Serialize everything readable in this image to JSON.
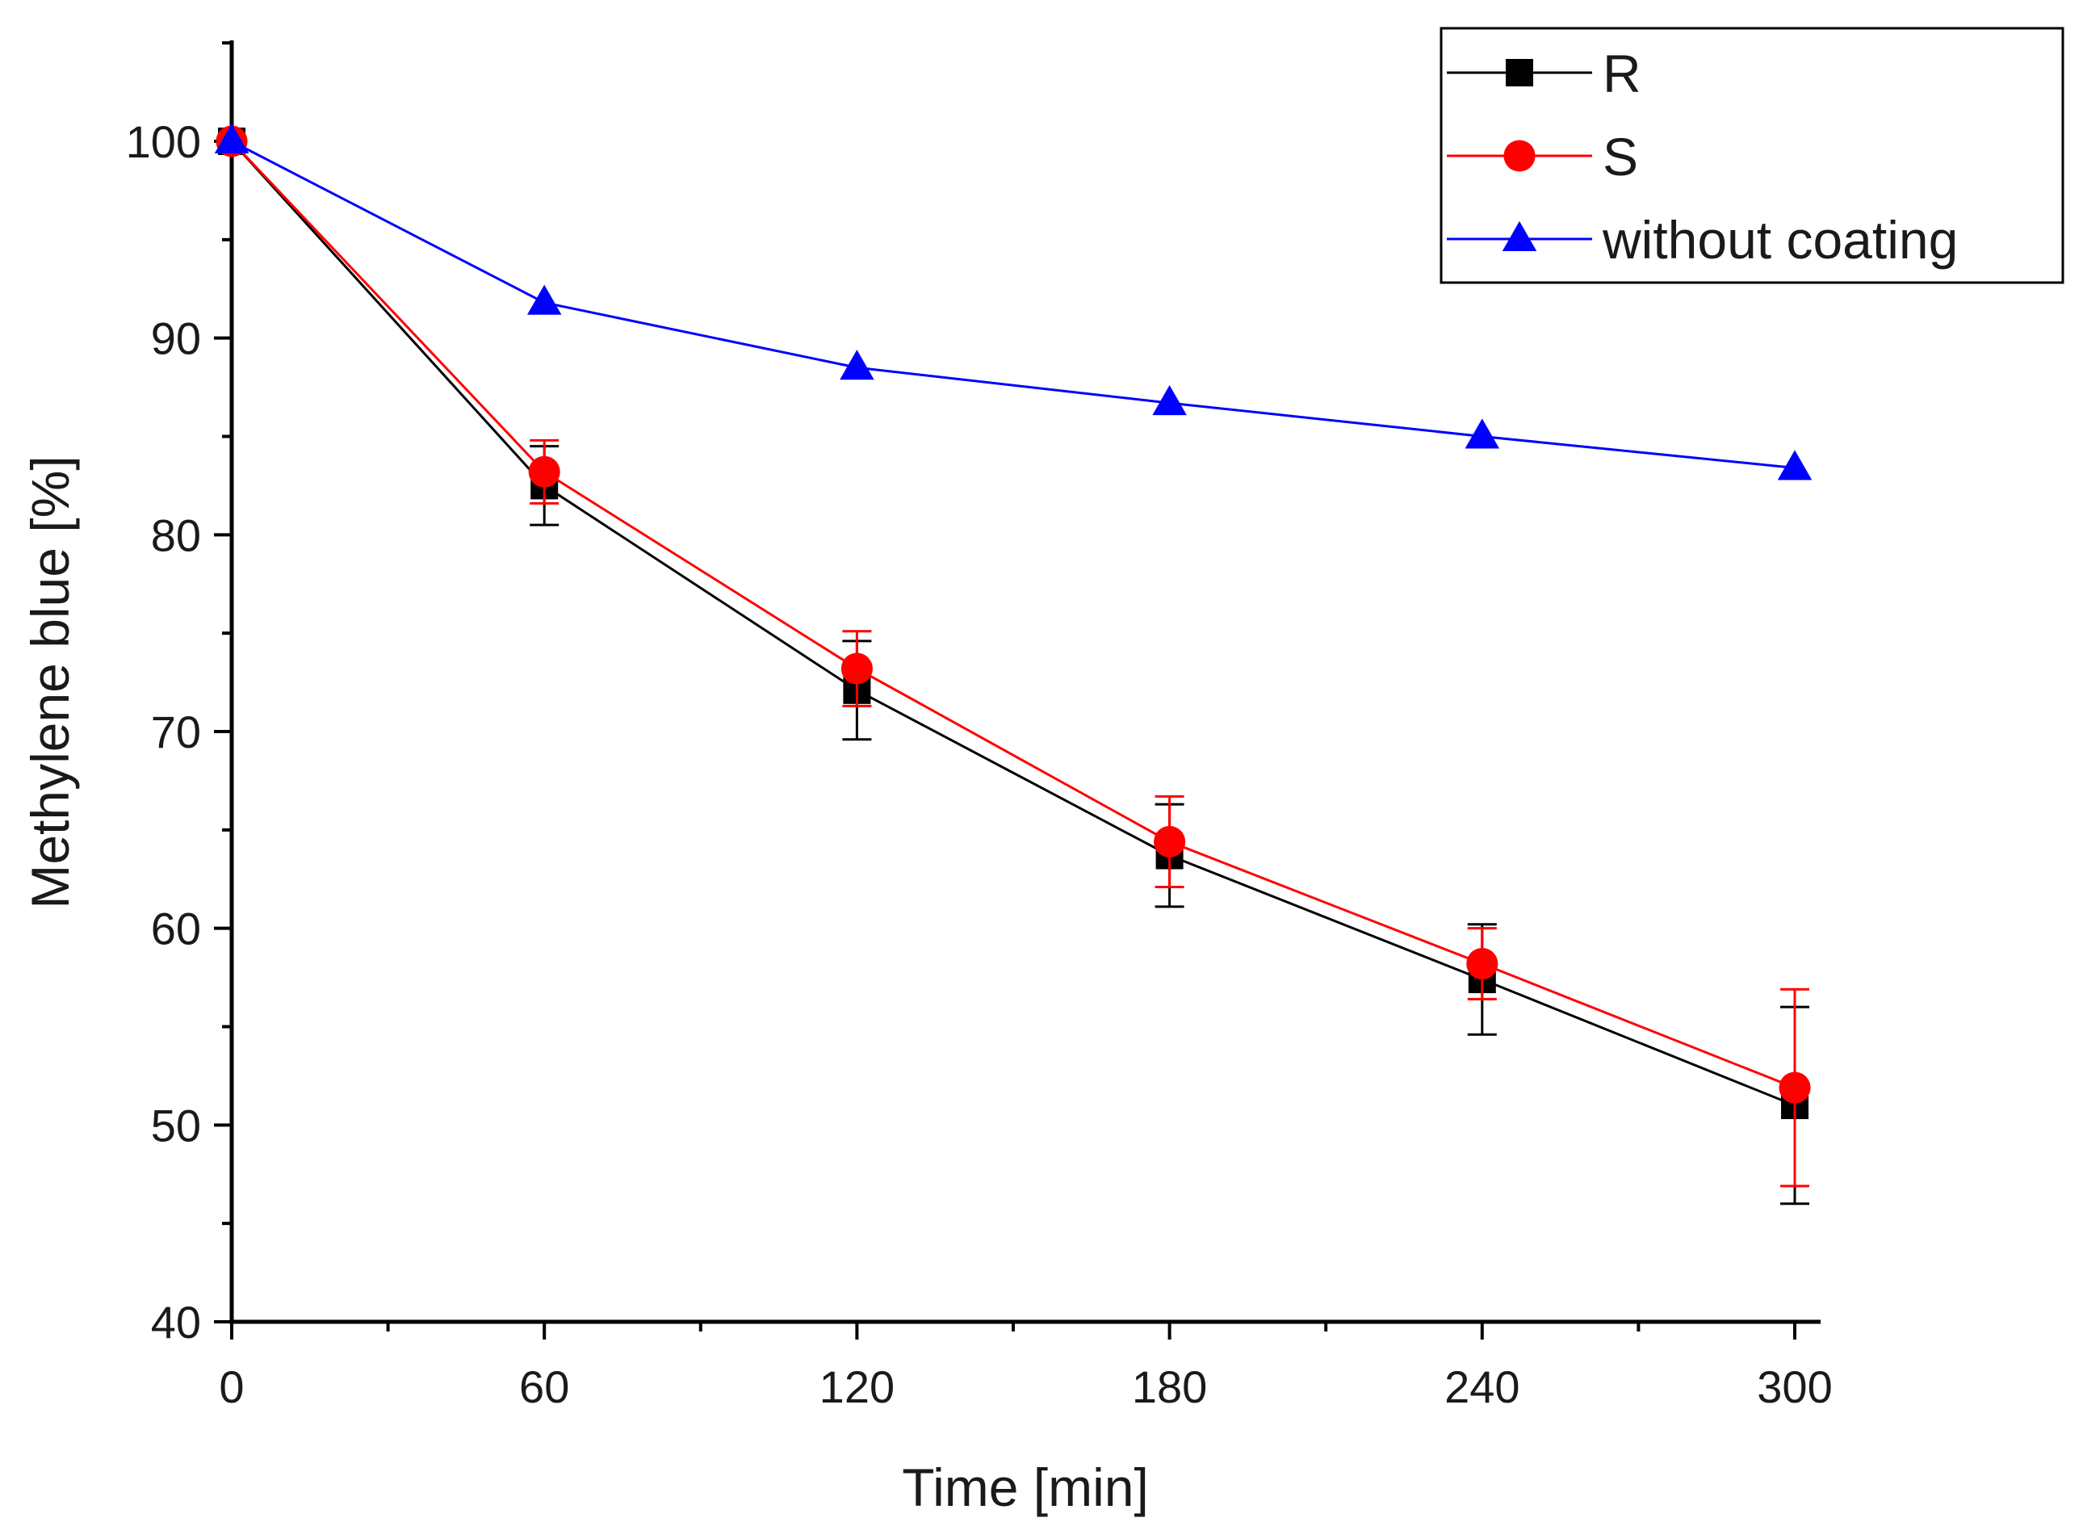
{
  "chart_data": {
    "type": "line",
    "xlabel": "Time [min]",
    "ylabel": "Methylene blue [%]",
    "xlim": [
      0,
      305
    ],
    "ylim": [
      40,
      105
    ],
    "xticks": [
      0,
      60,
      120,
      180,
      240,
      300
    ],
    "xtick_labels": [
      "0",
      "60",
      "120",
      "180",
      "240",
      "300"
    ],
    "yticks": [
      40,
      50,
      60,
      70,
      80,
      90,
      100
    ],
    "ytick_labels": [
      "40",
      "50",
      "60",
      "70",
      "80",
      "90",
      "100"
    ],
    "x": [
      0,
      60,
      120,
      180,
      240,
      300
    ],
    "legend_position": "top-right",
    "series": [
      {
        "name": "R",
        "marker": "square",
        "color": "#000000",
        "values": [
          100,
          82.5,
          72.1,
          63.7,
          57.4,
          51.0
        ],
        "errors": [
          0,
          2.0,
          2.5,
          2.6,
          2.8,
          5.0
        ]
      },
      {
        "name": "S",
        "marker": "circle",
        "color": "#ff0000",
        "values": [
          100,
          83.2,
          73.2,
          64.4,
          58.2,
          51.9
        ],
        "errors": [
          0,
          1.6,
          1.9,
          2.3,
          1.8,
          5.0
        ]
      },
      {
        "name": "without coating",
        "marker": "triangle",
        "color": "#0000ff",
        "values": [
          100,
          91.8,
          88.5,
          86.7,
          85.0,
          83.4
        ],
        "errors": [
          0,
          0,
          0,
          0,
          0,
          0
        ]
      }
    ]
  }
}
